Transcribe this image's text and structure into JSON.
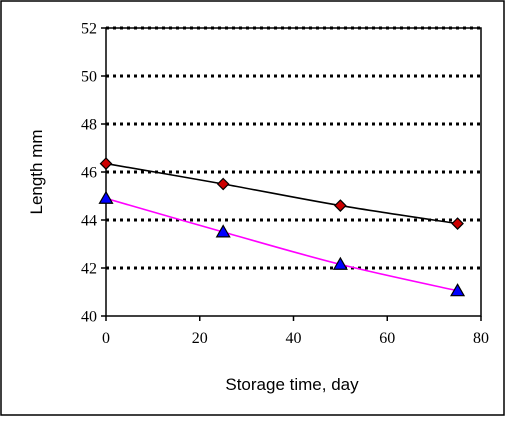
{
  "chart_data": {
    "type": "line",
    "xlabel": "Storage time, day",
    "ylabel": "Length mm",
    "xlim": [
      0,
      80
    ],
    "ylim": [
      40,
      52
    ],
    "x_ticks": [
      "0",
      "20",
      "40",
      "60",
      "80"
    ],
    "y_ticks": [
      "40",
      "42",
      "44",
      "46",
      "48",
      "50",
      "52"
    ],
    "grid": "horizontal dotted",
    "legend": "none",
    "series": [
      {
        "points": [
          {
            "x": 0,
            "y": 46.35
          },
          {
            "x": 25,
            "y": 45.5
          },
          {
            "x": 50,
            "y": 44.6
          },
          {
            "x": 75,
            "y": 43.85
          }
        ],
        "line_color": "#000000",
        "marker": "diamond",
        "marker_fill": "#cc0000",
        "marker_stroke": "#000000"
      },
      {
        "points": [
          {
            "x": 0,
            "y": 44.9
          },
          {
            "x": 25,
            "y": 43.5
          },
          {
            "x": 50,
            "y": 42.15
          },
          {
            "x": 75,
            "y": 41.05
          }
        ],
        "line_color": "#ff00ff",
        "marker": "triangle",
        "marker_fill": "#0000ff",
        "marker_stroke": "#000000"
      }
    ]
  }
}
